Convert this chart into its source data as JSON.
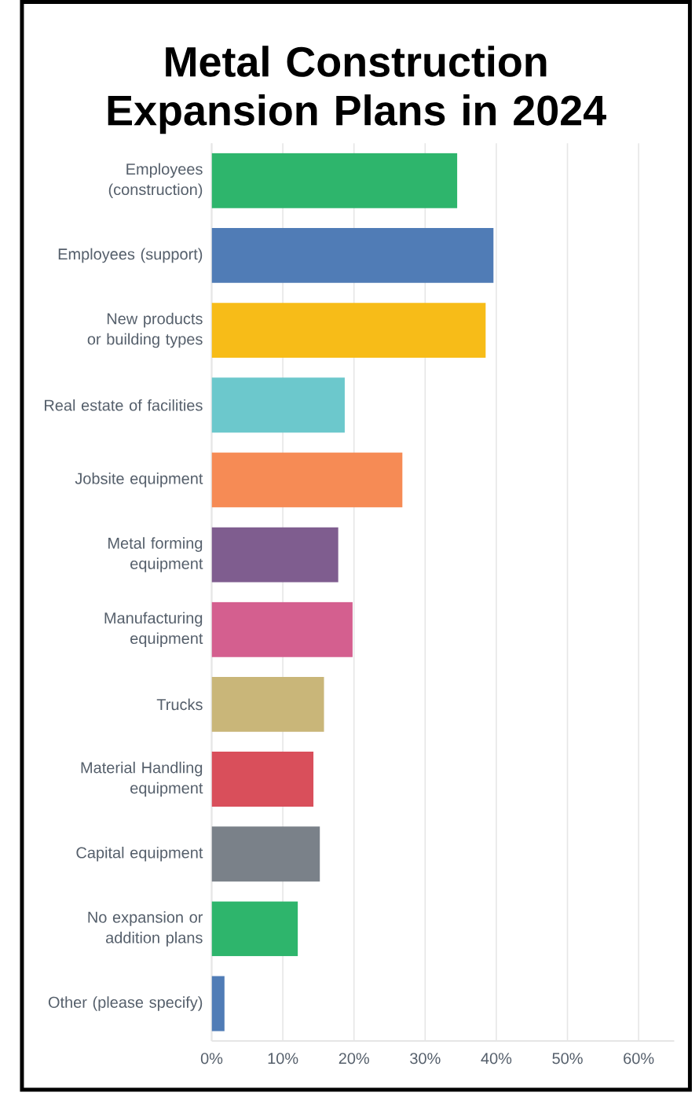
{
  "chart_data": {
    "type": "bar",
    "orientation": "horizontal",
    "title": "Metal Construction Expansion Plans in 2024",
    "categories": [
      "Employees (construction)",
      "Employees (support)",
      "New products or building types",
      "Real estate of facilities",
      "Jobsite equipment",
      "Metal forming equipment",
      "Manufacturing equipment",
      "Trucks",
      "Material Handling equipment",
      "Capital equipment",
      "No expansion or addition plans",
      "Other (please specify)"
    ],
    "values": [
      34.5,
      39.6,
      38.5,
      18.7,
      26.8,
      17.8,
      19.8,
      15.8,
      14.3,
      15.2,
      12.1,
      1.8
    ],
    "colors": [
      "#2eb56c",
      "#507cb6",
      "#f7bc18",
      "#6cc8cc",
      "#f68b55",
      "#7f5d8f",
      "#d45f8f",
      "#c9b679",
      "#d94f5b",
      "#7a8189",
      "#2eb56c",
      "#507cb6"
    ],
    "xlim": [
      0,
      65
    ],
    "xticks": [
      {
        "value": 0,
        "label": "0%"
      },
      {
        "value": 10,
        "label": "10%"
      },
      {
        "value": 20,
        "label": "20%"
      },
      {
        "value": 30,
        "label": "30%"
      },
      {
        "value": 40,
        "label": "40%"
      },
      {
        "value": 50,
        "label": "50%"
      },
      {
        "value": 60,
        "label": "60%"
      }
    ],
    "grid": "x"
  }
}
